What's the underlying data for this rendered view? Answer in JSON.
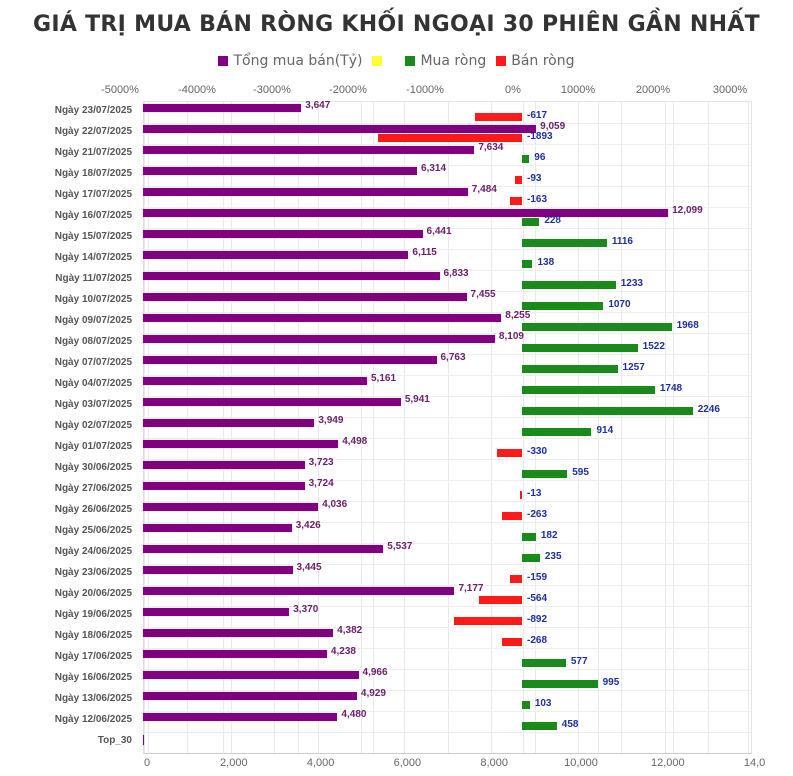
{
  "title": "GIÁ TRỊ MUA BÁN RÒNG KHỐI NGOẠI 30 PHIÊN GẦN NHẤT",
  "legend": [
    {
      "label": "Tổng mua bán(Tỷ)",
      "color": "#800080"
    },
    {
      "label": "",
      "color": "#ffff33"
    },
    {
      "label": "Mua ròng",
      "color": "#1a8a1a"
    },
    {
      "label": "Bán ròng",
      "color": "#ff1a1a"
    }
  ],
  "axes": {
    "top_ticks": [
      "-5000%",
      "-4000%",
      "-3000%",
      "-2000%",
      "-1000%",
      "0%",
      "1000%",
      "2000%",
      "3000%"
    ],
    "bottom_ticks": [
      "0",
      "2,000",
      "4,000",
      "6,000",
      "8,000",
      "10,000",
      "12,000",
      "14,0"
    ]
  },
  "chart_data": {
    "type": "bar",
    "orientation": "horizontal",
    "title": "GIÁ TRỊ MUA BÁN RÒNG KHỐI NGOẠI 30 PHIÊN GẦN NHẤT",
    "xlabel": "",
    "ylabel": "",
    "legend_position": "top",
    "grid": true,
    "bottom_axis_range": [
      0,
      14000
    ],
    "top_axis_range_label": [
      "-5000%",
      "3000%"
    ],
    "categories": [
      "Ngày 23/07/2025",
      "Ngày 22/07/2025",
      "Ngày 21/07/2025",
      "Ngày 18/07/2025",
      "Ngày 17/07/2025",
      "Ngày 16/07/2025",
      "Ngày 15/07/2025",
      "Ngày 14/07/2025",
      "Ngày 11/07/2025",
      "Ngày 10/07/2025",
      "Ngày 09/07/2025",
      "Ngày 08/07/2025",
      "Ngày 07/07/2025",
      "Ngày 04/07/2025",
      "Ngày 03/07/2025",
      "Ngày 02/07/2025",
      "Ngày 01/07/2025",
      "Ngày 30/06/2025",
      "Ngày 27/06/2025",
      "Ngày 26/06/2025",
      "Ngày 25/06/2025",
      "Ngày 24/06/2025",
      "Ngày 23/06/2025",
      "Ngày 20/06/2025",
      "Ngày 19/06/2025",
      "Ngày 18/06/2025",
      "Ngày 17/06/2025",
      "Ngày 16/06/2025",
      "Ngày 13/06/2025",
      "Ngày 12/06/2025",
      "Top_30"
    ],
    "series": [
      {
        "name": "Tổng mua bán(Tỷ)",
        "color": "#800080",
        "values": [
          3647,
          9059,
          7634,
          6314,
          7484,
          12099,
          6441,
          6115,
          6833,
          7455,
          8255,
          8109,
          6763,
          5161,
          5941,
          3949,
          4498,
          3723,
          3724,
          4036,
          3426,
          5537,
          3445,
          7177,
          3370,
          4382,
          4238,
          4966,
          4929,
          4480,
          0
        ],
        "labels": [
          "3,647",
          "9,059",
          "7,634",
          "6,314",
          "7,484",
          "12,099",
          "6,441",
          "6,115",
          "6,833",
          "7,455",
          "8,255",
          "8,109",
          "6,763",
          "5,161",
          "5,941",
          "3,949",
          "4,498",
          "3,723",
          "3,724",
          "4,036",
          "3,426",
          "5,537",
          "3,445",
          "7,177",
          "3,370",
          "4,382",
          "4,238",
          "4,966",
          "4,929",
          "4,480",
          ""
        ]
      },
      {
        "name": "Mua ròng / Bán ròng",
        "values": [
          -617,
          -1893,
          96,
          -93,
          -163,
          228,
          1116,
          138,
          1233,
          1070,
          1968,
          1522,
          1257,
          1748,
          2246,
          914,
          -330,
          595,
          -13,
          -263,
          182,
          235,
          -159,
          -564,
          -892,
          -268,
          577,
          995,
          103,
          458,
          null
        ],
        "labels": [
          "-617",
          "-1893",
          "96",
          "-93",
          "-163",
          "228",
          "1116",
          "138",
          "1233",
          "1070",
          "1968",
          "1522",
          "1257",
          "1748",
          "2246",
          "914",
          "-330",
          "595",
          "-13",
          "-263",
          "182",
          "235",
          "-159",
          "-564",
          "-892",
          "-268",
          "577",
          "995",
          "103",
          "458",
          ""
        ]
      }
    ]
  }
}
